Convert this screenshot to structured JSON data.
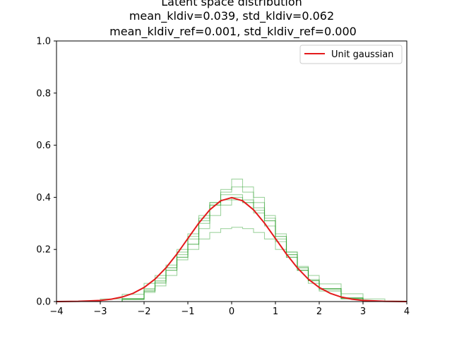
{
  "chart_data": {
    "type": "line",
    "title_lines": [
      "Latent space distribution",
      "mean_kldiv=0.039, std_kldiv=0.062",
      "mean_kldiv_ref=0.001, std_kldiv_ref=0.000"
    ],
    "xlabel": "",
    "ylabel": "",
    "xlim": [
      -4,
      4
    ],
    "ylim": [
      0,
      1
    ],
    "x_ticks": [
      -4,
      -3,
      -2,
      -1,
      0,
      1,
      2,
      3,
      4
    ],
    "x_tick_labels": [
      "−4",
      "−3",
      "−2",
      "−1",
      "0",
      "1",
      "2",
      "3",
      "4"
    ],
    "y_ticks": [
      0,
      0.2,
      0.4,
      0.6,
      0.8,
      1
    ],
    "y_tick_labels": [
      "0.0",
      "0.2",
      "0.4",
      "0.6",
      "0.8",
      "1.0"
    ],
    "grid": false,
    "legend": {
      "placement": "top-right",
      "entries": [
        "Unit gaussian"
      ]
    },
    "series": [
      {
        "name": "Unit gaussian",
        "kind": "line",
        "color": "#e41a1c",
        "x": [
          -4,
          -3.5,
          -3,
          -2.75,
          -2.5,
          -2.25,
          -2,
          -1.75,
          -1.5,
          -1.25,
          -1,
          -0.75,
          -0.5,
          -0.25,
          0,
          0.25,
          0.5,
          0.75,
          1,
          1.25,
          1.5,
          1.75,
          2,
          2.25,
          2.5,
          2.75,
          3,
          3.5,
          4
        ],
        "values": [
          0.0001,
          0.0009,
          0.0044,
          0.0091,
          0.0175,
          0.0317,
          0.054,
          0.0863,
          0.1295,
          0.1826,
          0.242,
          0.3011,
          0.3521,
          0.3867,
          0.3989,
          0.3867,
          0.3521,
          0.3011,
          0.242,
          0.1826,
          0.1295,
          0.0863,
          0.054,
          0.0317,
          0.0175,
          0.0091,
          0.0044,
          0.0009,
          0.0001
        ]
      },
      {
        "kind": "step",
        "color": "#2ca02c",
        "x": [
          -4,
          -3.5,
          -3,
          -2.5,
          -2,
          -1.75,
          -1.5,
          -1.25,
          -1,
          -0.75,
          -0.5,
          -0.25,
          0,
          0.25,
          0.5,
          0.75,
          1,
          1.25,
          1.5,
          1.75,
          2,
          2.5,
          3,
          3.5,
          4
        ],
        "values": [
          0.0,
          0.002,
          0.01,
          0.028,
          0.07,
          0.1,
          0.13,
          0.17,
          0.2,
          0.24,
          0.265,
          0.28,
          0.285,
          0.28,
          0.265,
          0.24,
          0.2,
          0.17,
          0.135,
          0.1,
          0.068,
          0.03,
          0.01,
          0.002,
          0.0
        ]
      },
      {
        "kind": "step",
        "color": "#2ca02c",
        "x": [
          -3,
          -2.5,
          -2,
          -1.75,
          -1.5,
          -1.25,
          -1,
          -0.75,
          -0.5,
          -0.25,
          0,
          0.25,
          0.5,
          0.75,
          1,
          1.25,
          1.5,
          1.75,
          2,
          2.5,
          3
        ],
        "values": [
          0.0,
          0.01,
          0.035,
          0.06,
          0.1,
          0.16,
          0.22,
          0.3,
          0.37,
          0.43,
          0.47,
          0.44,
          0.4,
          0.33,
          0.25,
          0.18,
          0.12,
          0.07,
          0.04,
          0.01,
          0.0
        ]
      },
      {
        "kind": "step",
        "color": "#2ca02c",
        "x": [
          -3,
          -2.5,
          -2,
          -1.75,
          -1.5,
          -1.25,
          -1,
          -0.75,
          -0.5,
          -0.25,
          0,
          0.25,
          0.5,
          0.75,
          1,
          1.25,
          1.5,
          1.75,
          2,
          2.5,
          3
        ],
        "values": [
          0.0,
          0.012,
          0.045,
          0.08,
          0.13,
          0.19,
          0.25,
          0.32,
          0.37,
          0.39,
          0.4,
          0.39,
          0.36,
          0.31,
          0.24,
          0.18,
          0.12,
          0.08,
          0.045,
          0.012,
          0.0
        ]
      },
      {
        "kind": "step",
        "color": "#2ca02c",
        "x": [
          -3,
          -2.5,
          -2,
          -1.75,
          -1.5,
          -1.25,
          -1,
          -0.75,
          -0.5,
          -0.25,
          0,
          0.25,
          0.5,
          0.75,
          1,
          1.25,
          1.5,
          1.75,
          2,
          2.5,
          3
        ],
        "values": [
          0.0,
          0.008,
          0.04,
          0.07,
          0.12,
          0.18,
          0.24,
          0.31,
          0.38,
          0.42,
          0.44,
          0.42,
          0.38,
          0.32,
          0.26,
          0.19,
          0.13,
          0.08,
          0.05,
          0.012,
          0.0
        ]
      },
      {
        "kind": "step",
        "color": "#2ca02c",
        "x": [
          -3,
          -2.5,
          -2,
          -1.75,
          -1.5,
          -1.25,
          -1,
          -0.75,
          -0.5,
          -0.25,
          0,
          0.25,
          0.5,
          0.75,
          1,
          1.25,
          1.5,
          1.75,
          2,
          2.5,
          3
        ],
        "values": [
          0.0,
          0.01,
          0.05,
          0.09,
          0.14,
          0.2,
          0.26,
          0.33,
          0.38,
          0.41,
          0.41,
          0.38,
          0.34,
          0.29,
          0.23,
          0.17,
          0.12,
          0.08,
          0.05,
          0.015,
          0.0
        ]
      },
      {
        "kind": "step",
        "color": "#2ca02c",
        "x": [
          -3,
          -2.5,
          -2,
          -1.75,
          -1.5,
          -1.25,
          -1,
          -0.75,
          -0.5,
          -0.25,
          0,
          0.25,
          0.5,
          0.75,
          1,
          1.25,
          1.5,
          1.75,
          2,
          2.5,
          3
        ],
        "values": [
          0.0,
          0.008,
          0.04,
          0.075,
          0.12,
          0.17,
          0.22,
          0.28,
          0.33,
          0.37,
          0.39,
          0.38,
          0.35,
          0.31,
          0.25,
          0.19,
          0.13,
          0.085,
          0.05,
          0.014,
          0.0
        ]
      }
    ]
  }
}
